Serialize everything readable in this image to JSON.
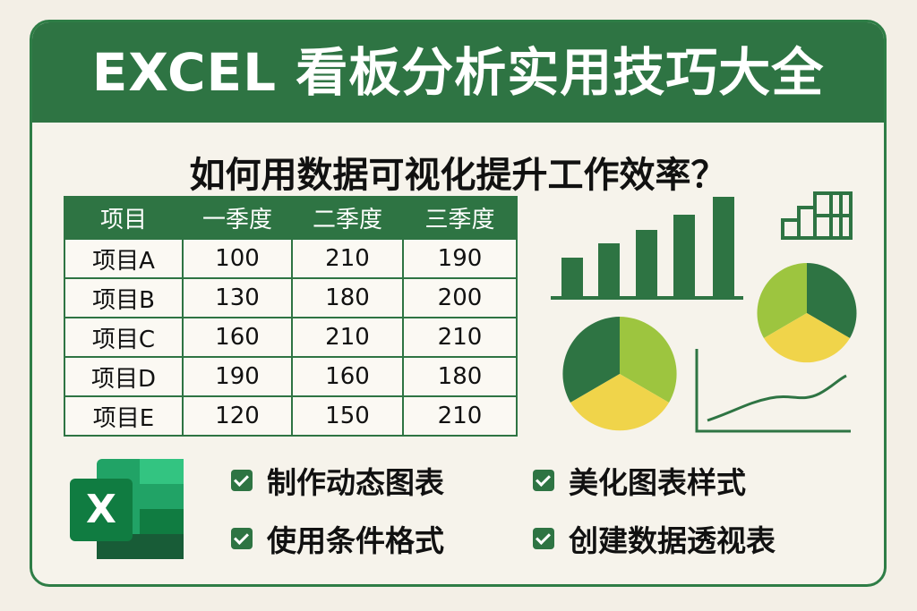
{
  "header": {
    "title": "EXCEL 看板分析实用技巧大全"
  },
  "subtitle": "如何用数据可视化提升工作效率？",
  "table": {
    "header": [
      "项目",
      "一季度",
      "二季度",
      "三季度"
    ],
    "rows": [
      [
        "项目A",
        "100",
        "210",
        "190"
      ],
      [
        "项目B",
        "130",
        "180",
        "200"
      ],
      [
        "项目C",
        "160",
        "210",
        "210"
      ],
      [
        "项目D",
        "190",
        "160",
        "180"
      ],
      [
        "项目E",
        "120",
        "150",
        "210"
      ]
    ]
  },
  "excel_icon": {
    "letter": "X"
  },
  "checklist": [
    "制作动态图表",
    "美化图表样式",
    "使用条件格式",
    "创建数据透视表"
  ]
}
